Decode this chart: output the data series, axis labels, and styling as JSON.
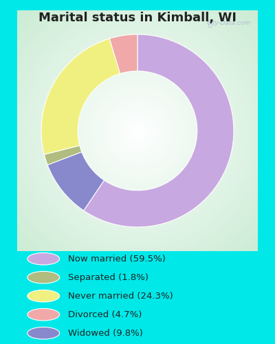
{
  "title": "Marital status in Kimball, WI",
  "slices": [
    59.5,
    9.8,
    1.8,
    24.3,
    4.7
  ],
  "slice_order_labels": [
    "Now married",
    "Widowed",
    "Separated",
    "Never married",
    "Divorced"
  ],
  "colors": [
    "#c8a8e0",
    "#8888cc",
    "#b0bc80",
    "#f0f080",
    "#f0a8a8"
  ],
  "legend_labels": [
    "Now married (59.5%)",
    "Separated (1.8%)",
    "Never married (24.3%)",
    "Divorced (4.7%)",
    "Widowed (9.8%)"
  ],
  "legend_colors": [
    "#c8a8e0",
    "#b0bc80",
    "#f0f080",
    "#f0a8a8",
    "#8888cc"
  ],
  "bg_outer": "#00e8e8",
  "title_color": "#222222",
  "title_fontsize": 13,
  "watermark": "City-Data.com",
  "start_angle": 90,
  "donut_width": 0.38
}
